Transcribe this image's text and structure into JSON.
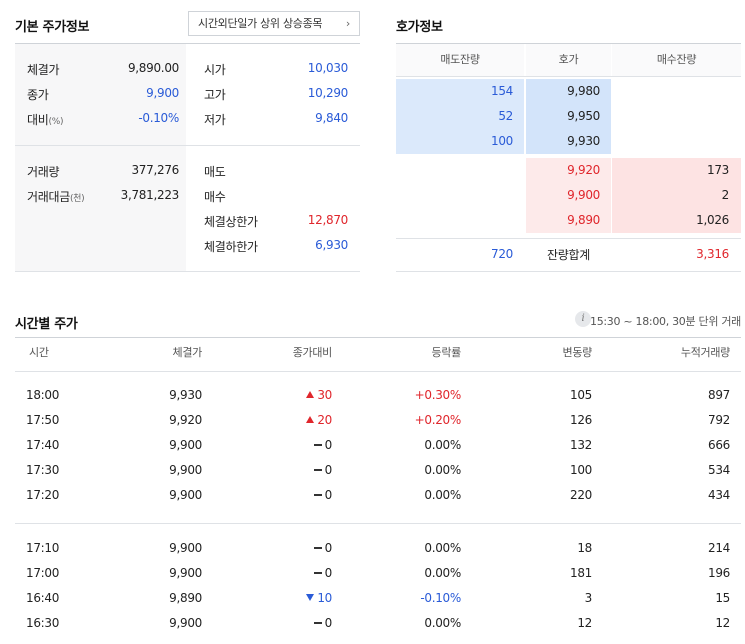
{
  "basic": {
    "title": "기본 주가정보",
    "button_label": "시간외단일가 상위 상승종목",
    "rows_left": [
      {
        "label": "체결가",
        "value": "9,890.00",
        "color": "black"
      },
      {
        "label": "종가",
        "value": "9,900",
        "color": "blue"
      },
      {
        "label": "대비",
        "unit": "(%)",
        "value": "-0.10%",
        "color": "blue"
      }
    ],
    "rows_right": [
      {
        "label": "시가",
        "value": "10,030",
        "color": "blue"
      },
      {
        "label": "고가",
        "value": "10,290",
        "color": "blue"
      },
      {
        "label": "저가",
        "value": "9,840",
        "color": "blue"
      }
    ],
    "rows_left2": [
      {
        "label": "거래량",
        "value": "377,276"
      },
      {
        "label": "거래대금",
        "unit": "(천)",
        "value": "3,781,223"
      }
    ],
    "rows_right2": [
      {
        "label": "매도",
        "value": ""
      },
      {
        "label": "매수",
        "value": ""
      },
      {
        "label": "체결상한가",
        "value": "12,870",
        "color": "red"
      },
      {
        "label": "체결하한가",
        "value": "6,930",
        "color": "blue"
      }
    ]
  },
  "orderbook": {
    "title": "호가정보",
    "headers": [
      "매도잔량",
      "호가",
      "매수잔량"
    ],
    "asks": [
      {
        "qty": "154",
        "price": "9,980"
      },
      {
        "qty": "52",
        "price": "9,950"
      },
      {
        "qty": "100",
        "price": "9,930"
      }
    ],
    "bids": [
      {
        "price": "9,920",
        "qty": "173"
      },
      {
        "price": "9,900",
        "qty": "2"
      },
      {
        "price": "9,890",
        "qty": "1,026"
      }
    ],
    "total_ask": "720",
    "total_label": "잔량합계",
    "total_bid": "3,316",
    "colors": {
      "ask_bg": "#dbe9fb",
      "ask_price_bg": "#d3e4fa",
      "bid_bg": "#fde3e3",
      "bid_price_bg": "#fdeaea"
    }
  },
  "timetable": {
    "title": "시간별 주가",
    "note": "15:30 ~ 18:00, 30분 단위 거래",
    "headers": [
      "시간",
      "체결가",
      "종가대비",
      "등락률",
      "변동량",
      "누적거래량"
    ],
    "group1": [
      {
        "time": "18:00",
        "price": "9,930",
        "dir": "up",
        "diff": "30",
        "rate": "+0.30%",
        "chg": "105",
        "cum": "897"
      },
      {
        "time": "17:50",
        "price": "9,920",
        "dir": "up",
        "diff": "20",
        "rate": "+0.20%",
        "chg": "126",
        "cum": "792"
      },
      {
        "time": "17:40",
        "price": "9,900",
        "dir": "flat",
        "diff": "0",
        "rate": "0.00%",
        "chg": "132",
        "cum": "666"
      },
      {
        "time": "17:30",
        "price": "9,900",
        "dir": "flat",
        "diff": "0",
        "rate": "0.00%",
        "chg": "100",
        "cum": "534"
      },
      {
        "time": "17:20",
        "price": "9,900",
        "dir": "flat",
        "diff": "0",
        "rate": "0.00%",
        "chg": "220",
        "cum": "434"
      }
    ],
    "group2": [
      {
        "time": "17:10",
        "price": "9,900",
        "dir": "flat",
        "diff": "0",
        "rate": "0.00%",
        "chg": "18",
        "cum": "214"
      },
      {
        "time": "17:00",
        "price": "9,900",
        "dir": "flat",
        "diff": "0",
        "rate": "0.00%",
        "chg": "181",
        "cum": "196"
      },
      {
        "time": "16:40",
        "price": "9,890",
        "dir": "down",
        "diff": "10",
        "rate": "-0.10%",
        "chg": "3",
        "cum": "15"
      },
      {
        "time": "16:30",
        "price": "9,900",
        "dir": "flat",
        "diff": "0",
        "rate": "0.00%",
        "chg": "12",
        "cum": "12"
      }
    ]
  }
}
